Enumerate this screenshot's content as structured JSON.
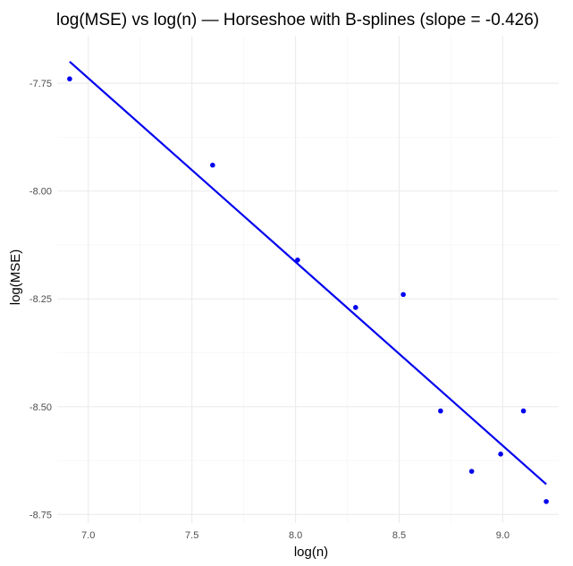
{
  "chart_data": {
    "type": "scatter",
    "title": "log(MSE) vs log(n) — Horseshoe with B-splines (slope = -0.426)",
    "xlabel": "log(n)",
    "ylabel": "log(MSE)",
    "xlim": [
      6.85,
      9.27
    ],
    "ylim": [
      -8.77,
      -7.64
    ],
    "xticks": [
      7.0,
      7.5,
      8.0,
      8.5,
      9.0
    ],
    "xtick_labels": [
      "7.0",
      "7.5",
      "8.0",
      "8.5",
      "9.0"
    ],
    "yticks": [
      -7.75,
      -8.0,
      -8.25,
      -8.5,
      -8.75
    ],
    "ytick_labels": [
      "-7.75",
      "-8.00",
      "-8.25",
      "-8.50",
      "-8.75"
    ],
    "grid": true,
    "points": [
      {
        "x": 6.91,
        "y": -7.74
      },
      {
        "x": 7.6,
        "y": -7.94
      },
      {
        "x": 8.01,
        "y": -8.16
      },
      {
        "x": 8.29,
        "y": -8.27
      },
      {
        "x": 8.52,
        "y": -8.24
      },
      {
        "x": 8.7,
        "y": -8.51
      },
      {
        "x": 8.85,
        "y": -8.65
      },
      {
        "x": 8.99,
        "y": -8.61
      },
      {
        "x": 9.1,
        "y": -8.51
      },
      {
        "x": 9.21,
        "y": -8.72
      }
    ],
    "fit_line": {
      "x": [
        6.91,
        9.21
      ],
      "y": [
        -7.7,
        -8.68
      ]
    },
    "colors": {
      "points": "#0000ee",
      "fit_line": "#0000ee",
      "grid": "#ebebeb"
    }
  }
}
